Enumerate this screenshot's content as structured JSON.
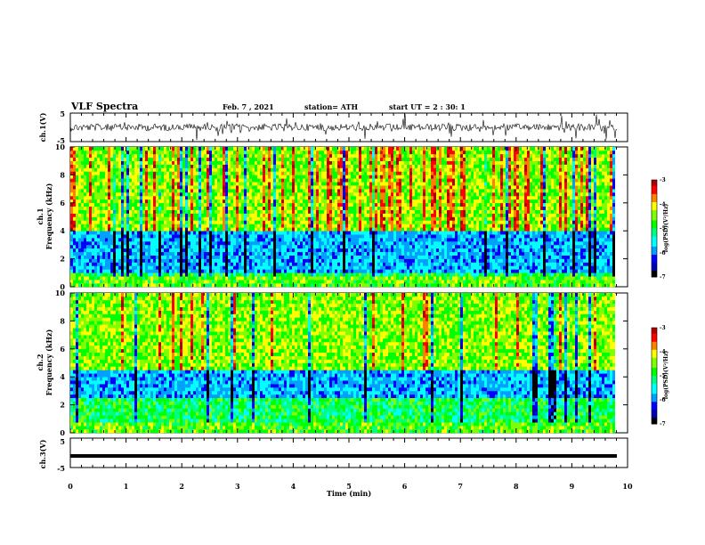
{
  "header": {
    "title": "VLF Spectra",
    "date": "Feb. 7 , 2021",
    "station": "station= ATH",
    "start": "start UT = 2 : 30: 1"
  },
  "chart_data": [
    {
      "type": "line",
      "panel": "ch1-waveform",
      "ylabel": "ch.1(V)",
      "ylim": [
        -5,
        5
      ],
      "yticks": [
        "5",
        "-5"
      ],
      "xlim": [
        0,
        10
      ]
    },
    {
      "type": "heatmap",
      "panel": "ch1-spectrogram",
      "ylabel_top": "ch.1",
      "ylabel": "Frequency (kHz)",
      "ylim": [
        0,
        10
      ],
      "yticks": [
        "0",
        "2",
        "4",
        "6",
        "8",
        "10"
      ],
      "xlim": [
        0,
        10
      ],
      "colorbar": {
        "label": "log(PSD)(V²/Hz)",
        "ticks": [
          "-3",
          "-4",
          "-5",
          "-6",
          "-7"
        ],
        "range": [
          -7,
          -3
        ]
      }
    },
    {
      "type": "heatmap",
      "panel": "ch2-spectrogram",
      "ylabel_top": "ch.2",
      "ylabel": "Frequency (kHz)",
      "ylim": [
        0,
        10
      ],
      "yticks": [
        "0",
        "2",
        "4",
        "6",
        "8",
        "10"
      ],
      "xlim": [
        0,
        10
      ],
      "colorbar": {
        "label": "log(PSD)(V²/Hz)",
        "ticks": [
          "-3",
          "-4",
          "-5",
          "-6",
          "-7"
        ],
        "range": [
          -7,
          -3
        ]
      }
    },
    {
      "type": "line",
      "panel": "ch3-waveform",
      "ylabel": "ch.3(V)",
      "ylim": [
        -5,
        5
      ],
      "yticks": [
        "5",
        "-5"
      ],
      "xlabel": "Time (min)",
      "xlim": [
        0,
        10
      ],
      "xticks": [
        "0",
        "1",
        "2",
        "3",
        "4",
        "5",
        "6",
        "7",
        "8",
        "9",
        "10"
      ]
    }
  ],
  "colors": {
    "colormap": [
      "#000000",
      "#0000b0",
      "#0000ff",
      "#00a0ff",
      "#00ffff",
      "#00ff80",
      "#00ff00",
      "#80ff00",
      "#ffff00",
      "#ff8000",
      "#ff0000",
      "#b00000"
    ]
  }
}
